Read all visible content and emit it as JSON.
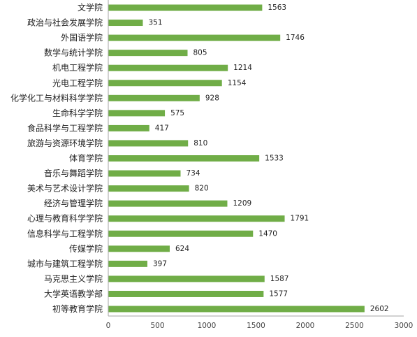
{
  "chart_data": {
    "type": "bar",
    "orientation": "horizontal",
    "categories": [
      "文学院",
      "政治与社会发展学院",
      "外国语学院",
      "数学与统计学院",
      "机电工程学院",
      "光电工程学院",
      "化学化工与材料科学学院",
      "生命科学学院",
      "食品科学与工程学院",
      "旅游与资源环境学院",
      "体育学院",
      "音乐与舞蹈学院",
      "美术与艺术设计学院",
      "经济与管理学院",
      "心理与教育科学学院",
      "信息科学与工程学院",
      "传媒学院",
      "城市与建筑工程学院",
      "马克思主义学院",
      "大学英语教学部",
      "初等教育学院"
    ],
    "values": [
      1563,
      351,
      1746,
      805,
      1214,
      1154,
      928,
      575,
      417,
      810,
      1533,
      734,
      820,
      1209,
      1791,
      1470,
      624,
      397,
      1587,
      1577,
      2602
    ],
    "xlim": [
      0,
      3000
    ],
    "xticks": [
      0,
      500,
      1000,
      1500,
      2000,
      2500,
      3000
    ],
    "title": "",
    "xlabel": "",
    "ylabel": "",
    "grid": false,
    "data_labels": true,
    "colors": {
      "bar": "#70AD47",
      "axis": "#A5A5A5"
    }
  }
}
